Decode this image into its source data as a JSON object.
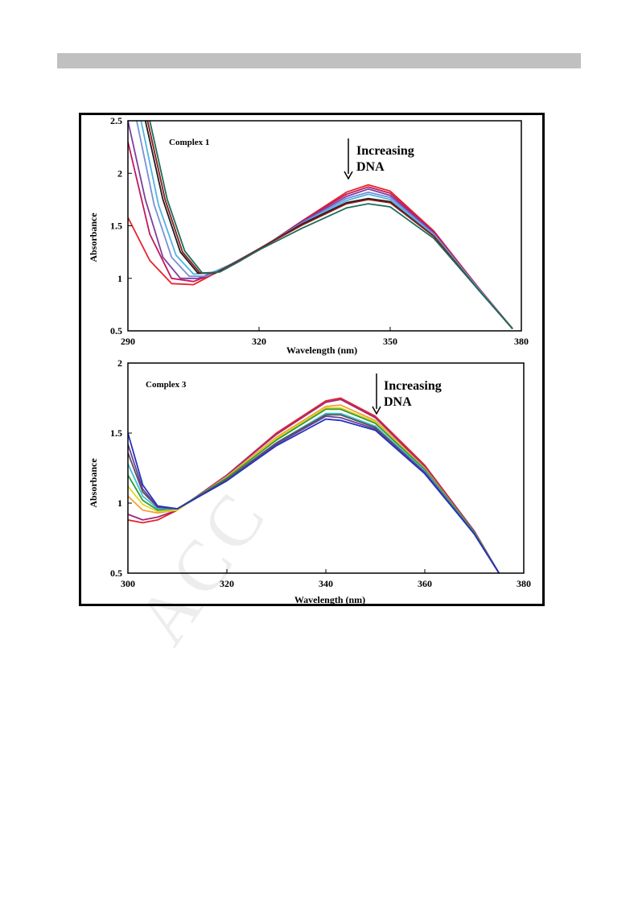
{
  "page": {
    "watermark_text": "ACC"
  },
  "chart_data": [
    {
      "type": "line",
      "title": "Complex 1",
      "xlabel": "Wavelength (nm)",
      "ylabel": "Absorbance",
      "xlim": [
        290,
        380
      ],
      "ylim": [
        0.5,
        2.5
      ],
      "x_ticks": [
        "290",
        "320",
        "350",
        "380"
      ],
      "y_ticks": [
        "0.5",
        "1",
        "1.5",
        "2",
        "2.5"
      ],
      "annotation": [
        "Increasing",
        "DNA"
      ],
      "grid": false,
      "series": [
        {
          "color": "#e8232a",
          "points": [
            [
              290,
              1.58
            ],
            [
              295,
              1.17
            ],
            [
              300,
              0.95
            ],
            [
              305,
              0.94
            ],
            [
              310,
              1.05
            ],
            [
              320,
              1.27
            ],
            [
              330,
              1.55
            ],
            [
              340,
              1.82
            ],
            [
              345,
              1.89
            ],
            [
              350,
              1.83
            ],
            [
              360,
              1.45
            ],
            [
              370,
              0.92
            ],
            [
              378,
              0.52
            ]
          ]
        },
        {
          "color": "#c2185b",
          "points": [
            [
              290,
              2.3
            ],
            [
              295,
              1.42
            ],
            [
              300,
              1.0
            ],
            [
              305,
              0.97
            ],
            [
              310,
              1.05
            ],
            [
              320,
              1.27
            ],
            [
              330,
              1.55
            ],
            [
              340,
              1.8
            ],
            [
              345,
              1.87
            ],
            [
              350,
              1.81
            ],
            [
              360,
              1.44
            ],
            [
              370,
              0.92
            ],
            [
              378,
              0.52
            ]
          ]
        },
        {
          "color": "#7b3fa0",
          "points": [
            [
              290,
              2.5
            ],
            [
              294,
              1.75
            ],
            [
              298,
              1.2
            ],
            [
              302,
              1.0
            ],
            [
              306,
              1.0
            ],
            [
              310,
              1.06
            ],
            [
              320,
              1.27
            ],
            [
              330,
              1.54
            ],
            [
              340,
              1.78
            ],
            [
              345,
              1.85
            ],
            [
              350,
              1.79
            ],
            [
              360,
              1.43
            ],
            [
              370,
              0.91
            ],
            [
              378,
              0.52
            ]
          ]
        },
        {
          "color": "#7a8fd6",
          "points": [
            [
              292,
              2.5
            ],
            [
              296,
              1.7
            ],
            [
              300,
              1.2
            ],
            [
              304,
              1.02
            ],
            [
              308,
              1.02
            ],
            [
              312,
              1.1
            ],
            [
              320,
              1.28
            ],
            [
              330,
              1.53
            ],
            [
              340,
              1.76
            ],
            [
              345,
              1.82
            ],
            [
              350,
              1.77
            ],
            [
              360,
              1.42
            ],
            [
              370,
              0.91
            ],
            [
              378,
              0.52
            ]
          ]
        },
        {
          "color": "#4fb4e3",
          "points": [
            [
              293,
              2.5
            ],
            [
              297,
              1.7
            ],
            [
              301,
              1.22
            ],
            [
              305,
              1.04
            ],
            [
              309,
              1.05
            ],
            [
              315,
              1.16
            ],
            [
              320,
              1.28
            ],
            [
              330,
              1.52
            ],
            [
              340,
              1.74
            ],
            [
              345,
              1.8
            ],
            [
              350,
              1.75
            ],
            [
              360,
              1.41
            ],
            [
              370,
              0.91
            ],
            [
              378,
              0.52
            ]
          ]
        },
        {
          "color": "#1b1b1b",
          "points": [
            [
              294,
              2.5
            ],
            [
              298,
              1.75
            ],
            [
              302,
              1.25
            ],
            [
              306,
              1.05
            ],
            [
              310,
              1.05
            ],
            [
              315,
              1.16
            ],
            [
              320,
              1.28
            ],
            [
              330,
              1.52
            ],
            [
              340,
              1.72
            ],
            [
              345,
              1.76
            ],
            [
              350,
              1.73
            ],
            [
              360,
              1.4
            ],
            [
              370,
              0.9
            ],
            [
              378,
              0.52
            ]
          ]
        },
        {
          "color": "#8c1a1a",
          "points": [
            [
              294.5,
              2.5
            ],
            [
              298.5,
              1.75
            ],
            [
              302.5,
              1.25
            ],
            [
              306.5,
              1.05
            ],
            [
              310,
              1.05
            ],
            [
              315,
              1.16
            ],
            [
              320,
              1.28
            ],
            [
              330,
              1.51
            ],
            [
              340,
              1.71
            ],
            [
              345,
              1.75
            ],
            [
              350,
              1.72
            ],
            [
              360,
              1.4
            ],
            [
              370,
              0.9
            ],
            [
              378,
              0.52
            ]
          ]
        },
        {
          "color": "#1e6b5a",
          "points": [
            [
              295,
              2.5
            ],
            [
              299,
              1.75
            ],
            [
              303,
              1.26
            ],
            [
              307,
              1.05
            ],
            [
              311,
              1.06
            ],
            [
              315,
              1.15
            ],
            [
              320,
              1.27
            ],
            [
              330,
              1.48
            ],
            [
              340,
              1.67
            ],
            [
              345,
              1.71
            ],
            [
              350,
              1.68
            ],
            [
              360,
              1.38
            ],
            [
              370,
              0.9
            ],
            [
              378,
              0.52
            ]
          ]
        }
      ]
    },
    {
      "type": "line",
      "title": "Complex 3",
      "xlabel": "Wavelength (nm)",
      "ylabel": "Absorbance",
      "xlim": [
        300,
        380
      ],
      "ylim": [
        0.5,
        2
      ],
      "x_ticks": [
        "300",
        "320",
        "340",
        "360",
        "380"
      ],
      "y_ticks": [
        "0.5",
        "1",
        "1.5",
        "2"
      ],
      "annotation": [
        "Increasing",
        "DNA"
      ],
      "grid": false,
      "series": [
        {
          "color": "#e8232a",
          "points": [
            [
              300,
              0.88
            ],
            [
              303,
              0.86
            ],
            [
              306,
              0.88
            ],
            [
              310,
              0.95
            ],
            [
              320,
              1.2
            ],
            [
              330,
              1.5
            ],
            [
              340,
              1.73
            ],
            [
              343,
              1.75
            ],
            [
              350,
              1.62
            ],
            [
              360,
              1.27
            ],
            [
              370,
              0.8
            ],
            [
              375,
              0.5
            ]
          ]
        },
        {
          "color": "#a0287c",
          "points": [
            [
              300,
              0.92
            ],
            [
              303,
              0.88
            ],
            [
              306,
              0.9
            ],
            [
              310,
              0.95
            ],
            [
              320,
              1.2
            ],
            [
              330,
              1.49
            ],
            [
              340,
              1.72
            ],
            [
              343,
              1.74
            ],
            [
              350,
              1.61
            ],
            [
              360,
              1.26
            ],
            [
              370,
              0.8
            ],
            [
              375,
              0.5
            ]
          ]
        },
        {
          "color": "#f2a23a",
          "points": [
            [
              300,
              1.05
            ],
            [
              303,
              0.95
            ],
            [
              306,
              0.93
            ],
            [
              310,
              0.95
            ],
            [
              320,
              1.19
            ],
            [
              330,
              1.47
            ],
            [
              340,
              1.69
            ],
            [
              343,
              1.7
            ],
            [
              350,
              1.59
            ],
            [
              360,
              1.25
            ],
            [
              370,
              0.79
            ],
            [
              375,
              0.5
            ]
          ]
        },
        {
          "color": "#e6d720",
          "points": [
            [
              300,
              1.12
            ],
            [
              303,
              0.99
            ],
            [
              306,
              0.94
            ],
            [
              310,
              0.95
            ],
            [
              320,
              1.18
            ],
            [
              330,
              1.46
            ],
            [
              340,
              1.68
            ],
            [
              343,
              1.68
            ],
            [
              350,
              1.58
            ],
            [
              360,
              1.24
            ],
            [
              370,
              0.79
            ],
            [
              375,
              0.5
            ]
          ]
        },
        {
          "color": "#2e9e3a",
          "points": [
            [
              300,
              1.2
            ],
            [
              303,
              1.02
            ],
            [
              306,
              0.95
            ],
            [
              310,
              0.96
            ],
            [
              320,
              1.18
            ],
            [
              330,
              1.45
            ],
            [
              340,
              1.67
            ],
            [
              343,
              1.67
            ],
            [
              350,
              1.57
            ],
            [
              360,
              1.24
            ],
            [
              370,
              0.79
            ],
            [
              375,
              0.5
            ]
          ]
        },
        {
          "color": "#3fc1d8",
          "points": [
            [
              300,
              1.28
            ],
            [
              303,
              1.05
            ],
            [
              306,
              0.96
            ],
            [
              310,
              0.96
            ],
            [
              320,
              1.17
            ],
            [
              330,
              1.43
            ],
            [
              340,
              1.64
            ],
            [
              343,
              1.64
            ],
            [
              350,
              1.55
            ],
            [
              360,
              1.23
            ],
            [
              370,
              0.78
            ],
            [
              375,
              0.5
            ]
          ]
        },
        {
          "color": "#555555",
          "points": [
            [
              300,
              1.36
            ],
            [
              303,
              1.08
            ],
            [
              306,
              0.97
            ],
            [
              310,
              0.96
            ],
            [
              320,
              1.17
            ],
            [
              330,
              1.43
            ],
            [
              340,
              1.63
            ],
            [
              343,
              1.63
            ],
            [
              350,
              1.54
            ],
            [
              360,
              1.22
            ],
            [
              370,
              0.78
            ],
            [
              375,
              0.5
            ]
          ]
        },
        {
          "color": "#6a3d9a",
          "points": [
            [
              300,
              1.42
            ],
            [
              303,
              1.1
            ],
            [
              306,
              0.97
            ],
            [
              310,
              0.96
            ],
            [
              320,
              1.16
            ],
            [
              330,
              1.42
            ],
            [
              340,
              1.62
            ],
            [
              343,
              1.61
            ],
            [
              350,
              1.53
            ],
            [
              360,
              1.22
            ],
            [
              370,
              0.78
            ],
            [
              375,
              0.5
            ]
          ]
        },
        {
          "color": "#2233bb",
          "points": [
            [
              300,
              1.5
            ],
            [
              303,
              1.13
            ],
            [
              306,
              0.98
            ],
            [
              310,
              0.96
            ],
            [
              320,
              1.16
            ],
            [
              330,
              1.41
            ],
            [
              340,
              1.6
            ],
            [
              343,
              1.59
            ],
            [
              350,
              1.52
            ],
            [
              360,
              1.21
            ],
            [
              370,
              0.78
            ],
            [
              375,
              0.5
            ]
          ]
        }
      ]
    }
  ]
}
